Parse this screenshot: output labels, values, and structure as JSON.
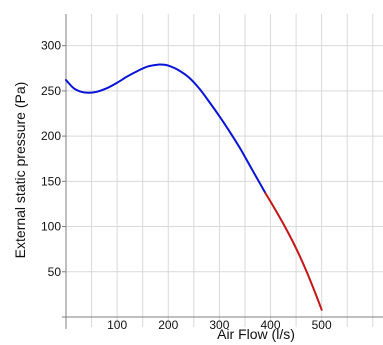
{
  "chart_data": {
    "type": "line",
    "title": "",
    "xlabel": "Air Flow (l/s)",
    "ylabel": "External static pressure (Pa)",
    "xlim": [
      0,
      620
    ],
    "ylim": [
      0,
      335
    ],
    "x_ticks": [
      100,
      200,
      300,
      400,
      500
    ],
    "y_ticks": [
      50,
      100,
      150,
      200,
      250,
      300
    ],
    "grid": true,
    "legend": "none",
    "series": [
      {
        "color": "#0a14d6",
        "x": [
          0,
          15,
          30,
          45,
          60,
          80,
          100,
          120,
          140,
          160,
          180,
          190,
          200,
          220,
          240,
          260,
          280,
          300,
          320,
          340,
          360,
          380,
          390
        ],
        "y": [
          262,
          253,
          249,
          248,
          249,
          253,
          259,
          266,
          272,
          277,
          279,
          279,
          278,
          273,
          265,
          253,
          238,
          222,
          205,
          187,
          167,
          147,
          137
        ]
      },
      {
        "color": "#c41616",
        "x": [
          390,
          410,
          430,
          450,
          470,
          490,
          500
        ],
        "y": [
          137,
          118,
          98,
          76,
          51,
          23,
          8
        ]
      }
    ]
  }
}
